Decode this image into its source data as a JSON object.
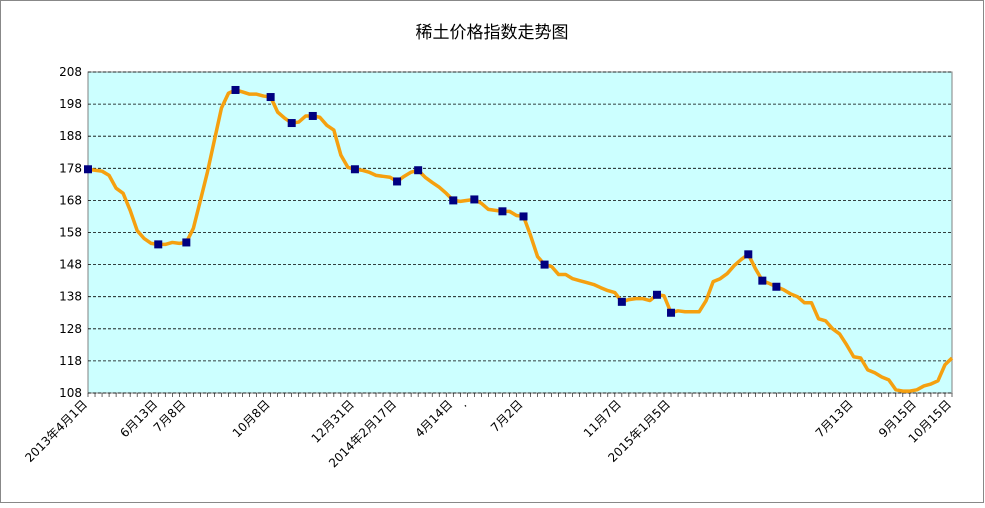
{
  "chart_data": {
    "type": "line",
    "title": "稀土价格指数走势图",
    "categories": [
      "2013年4月1日",
      null,
      null,
      null,
      null,
      null,
      null,
      null,
      null,
      null,
      "6月13日",
      null,
      null,
      null,
      "7月8日",
      null,
      null,
      null,
      null,
      null,
      null,
      null,
      null,
      null,
      null,
      null,
      "10月8日",
      null,
      null,
      null,
      null,
      null,
      null,
      null,
      null,
      null,
      null,
      null,
      "12月31日",
      null,
      null,
      null,
      null,
      null,
      "2014年2月17日",
      null,
      null,
      null,
      null,
      null,
      null,
      null,
      "4月14日",
      null,
      ".",
      null,
      null,
      null,
      null,
      null,
      null,
      null,
      "7月2日",
      null,
      null,
      null,
      null,
      null,
      null,
      null,
      null,
      null,
      null,
      null,
      null,
      null,
      "11月7日",
      null,
      null,
      null,
      null,
      null,
      null,
      "2015年1月5日",
      null,
      null,
      null,
      null,
      null,
      null,
      null,
      null,
      null,
      null,
      null,
      null,
      null,
      null,
      null,
      null,
      null,
      null,
      null,
      null,
      null,
      null,
      null,
      null,
      null,
      "7月13日",
      null,
      null,
      null,
      null,
      null,
      null,
      null,
      null,
      "9月15日",
      null,
      null,
      null,
      null,
      "10月15日"
    ],
    "values": [
      177.7,
      177.4,
      177.1,
      175.8,
      171.8,
      170.2,
      164.9,
      158.6,
      156.1,
      154.6,
      154.3,
      154.3,
      154.9,
      154.6,
      154.9,
      159.3,
      168,
      176.8,
      186.8,
      196.8,
      201.4,
      202.4,
      201.8,
      201.1,
      201.1,
      200.5,
      200.2,
      195.5,
      193.6,
      192.1,
      192.4,
      194.3,
      194.3,
      193.9,
      191.4,
      189.9,
      182.1,
      178.3,
      177.7,
      177.4,
      176.8,
      175.8,
      175.5,
      175.2,
      173.9,
      175.5,
      176.8,
      177.4,
      175.2,
      173.6,
      172.1,
      170.2,
      168,
      167.7,
      168,
      168.3,
      167.1,
      165.2,
      164.9,
      164.6,
      164.6,
      163.3,
      163,
      157.1,
      150.5,
      148,
      147.4,
      144.9,
      144.9,
      143.6,
      143,
      142.4,
      141.8,
      140.8,
      139.9,
      139.3,
      136.4,
      137.1,
      137.4,
      137.4,
      136.8,
      138.6,
      138.3,
      133,
      133.6,
      133.3,
      133.3,
      133.3,
      136.8,
      142.7,
      143.6,
      145.2,
      147.7,
      149.6,
      151.2,
      146.8,
      143,
      142.1,
      141.1,
      140.2,
      138.9,
      138,
      136.1,
      136.1,
      131.1,
      130.5,
      128,
      126.4,
      123,
      119.3,
      118.9,
      115.2,
      114.3,
      113,
      112.1,
      109,
      108.6,
      108.6,
      109,
      110.2,
      110.8,
      111.8,
      116.8,
      118.9
    ],
    "color": "#f5a00f",
    "markers": {
      "color": "#000080",
      "values": [
        177.7,
        null,
        null,
        null,
        null,
        null,
        null,
        null,
        null,
        null,
        154.3,
        null,
        null,
        null,
        154.9,
        null,
        null,
        null,
        null,
        null,
        null,
        202.4,
        null,
        null,
        null,
        null,
        200.2,
        null,
        null,
        192.1,
        null,
        null,
        194.3,
        null,
        null,
        null,
        null,
        null,
        177.7,
        null,
        null,
        null,
        null,
        null,
        173.9,
        null,
        null,
        177.4,
        null,
        null,
        null,
        null,
        168,
        null,
        null,
        168.3,
        null,
        null,
        null,
        164.6,
        null,
        null,
        163,
        null,
        null,
        148,
        null,
        null,
        null,
        null,
        null,
        null,
        null,
        null,
        null,
        null,
        136.4,
        null,
        null,
        null,
        null,
        138.6,
        null,
        133,
        null,
        null,
        null,
        null,
        null,
        null,
        null,
        null,
        null,
        null,
        151.2,
        null,
        143,
        null,
        141.1,
        null,
        null,
        null,
        null,
        null,
        null,
        null,
        null,
        null,
        null,
        null,
        null,
        null,
        null,
        null,
        null,
        null,
        null,
        null,
        null,
        null,
        null,
        null,
        null,
        null
      ]
    },
    "ylim": [
      108,
      208
    ],
    "yticks": [
      108,
      118,
      128,
      138,
      148,
      158,
      168,
      178,
      188,
      198,
      208
    ],
    "grid": true
  }
}
